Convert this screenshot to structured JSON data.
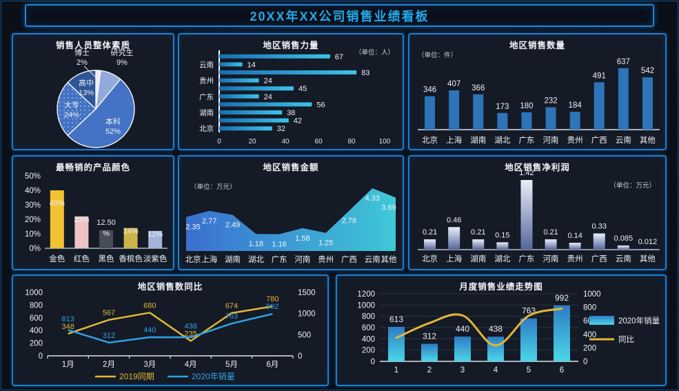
{
  "page": {
    "title": "20XX年XX公司销售业绩看板",
    "colors": {
      "background": "#0b0f17",
      "panel_background": "#141a26",
      "panel_border": "#1b7fd4",
      "title_text": "#23a9ea",
      "text": "#eef2f5",
      "yellow_series": "#e3b838",
      "blue_series": "#2fa3e6"
    }
  },
  "chart_data": [
    {
      "id": "staff-quality",
      "renderer": "pie",
      "type": "pie",
      "title": "销售人员整体素质",
      "labels": [
        "博士",
        "研究生",
        "本科",
        "大专",
        "高中"
      ],
      "values": [
        2,
        9,
        52,
        24,
        13
      ],
      "value_labels": [
        "2%",
        "9%",
        "52%",
        "24%",
        "13%"
      ],
      "colors": [
        "#e8eef8",
        "#93a9dc",
        "#4472c4",
        "#4472c4",
        "#2e5597"
      ],
      "pattern_slice": 3,
      "legend_position": "none"
    },
    {
      "id": "regional-sales-force",
      "renderer": "hbar",
      "type": "bar",
      "orientation": "horizontal",
      "title": "地区销售力量",
      "unit": "（单位：人）",
      "categories": [
        "",
        "云南",
        "",
        "贵州",
        "",
        "广东",
        "",
        "湖南",
        "",
        "北京"
      ],
      "values": [
        67,
        14,
        83,
        24,
        45,
        24,
        56,
        38,
        42,
        32
      ],
      "xlim": [
        0,
        100
      ],
      "xticks": [
        0,
        20,
        40,
        60,
        80,
        100
      ],
      "bar_gradient": [
        "#1b6db0",
        "#3cc3e8"
      ],
      "grid": false
    },
    {
      "id": "regional-sales-quantity",
      "renderer": "vbar",
      "type": "bar",
      "title": "地区销售数量",
      "unit": "（单位：件）",
      "categories": [
        "北京",
        "上海",
        "湖南",
        "湖北",
        "广东",
        "河南",
        "贵州",
        "广西",
        "云南",
        "其他"
      ],
      "values": [
        346,
        407,
        366,
        173,
        180,
        232,
        184,
        491,
        637,
        542
      ],
      "ylim": [
        0,
        700
      ],
      "bar_color": "#2d74b8",
      "grid": false
    },
    {
      "id": "best-selling-colors",
      "renderer": "pctbar",
      "type": "bar",
      "variant": "percent",
      "title": "最畅销的产品颜色",
      "categories": [
        "金色",
        "红色",
        "黑色",
        "香槟色",
        "淡紫色"
      ],
      "values": [
        40,
        22,
        12.5,
        14,
        12
      ],
      "value_labels": [
        "40%",
        "22%",
        "12.50%",
        "14%",
        "12%"
      ],
      "bar_colors": [
        "#f1c232",
        "#eec3c3",
        "#474d59",
        "#cdb44a",
        "#a6b3d9"
      ],
      "yticks": [
        "0%",
        "10%",
        "20%",
        "30%",
        "40%",
        "50%"
      ],
      "ylim": [
        0,
        50
      ],
      "grid": false
    },
    {
      "id": "regional-sales-amount",
      "renderer": "area",
      "type": "area",
      "title": "地区销售金额",
      "unit": "（单位：万元）",
      "categories": [
        "北京",
        "上海",
        "湖南",
        "湖北",
        "广东",
        "河南",
        "贵州",
        "广西",
        "云南",
        "其他"
      ],
      "values": [
        2.35,
        2.77,
        2.49,
        1.18,
        1.16,
        1.58,
        1.25,
        2.78,
        4.33,
        3.69
      ],
      "ylim": [
        0,
        4.33
      ],
      "area_gradient": [
        "#3a6fd0",
        "#3fc8d8"
      ],
      "grid": false
    },
    {
      "id": "regional-net-profit",
      "renderer": "gradbar",
      "type": "bar",
      "title": "地区销售净利润",
      "unit": "（单位：万元）",
      "categories": [
        "北京",
        "上海",
        "湖南",
        "湖北",
        "广东",
        "河南",
        "贵州",
        "广西",
        "云南",
        "其他"
      ],
      "values": [
        0.21,
        0.46,
        0.21,
        0.15,
        1.42,
        0.21,
        0.14,
        0.33,
        0.085,
        0.012
      ],
      "ylim": [
        0,
        1.42
      ],
      "bar_gradient": [
        "#e9eef9",
        "#54679b"
      ],
      "grid": false
    },
    {
      "id": "regional-sales-yoy",
      "renderer": "dualline",
      "type": "line",
      "title": "地区销售数同比",
      "categories": [
        "1月",
        "2月",
        "3月",
        "4月",
        "5月",
        "6月"
      ],
      "series": [
        {
          "name": "2019同期",
          "color": "#e3b838",
          "axis": "left",
          "values": [
            348,
            567,
            680,
            235,
            674,
            780
          ]
        },
        {
          "name": "2020年销量",
          "color": "#2fa3e6",
          "axis": "right",
          "values": [
            613,
            312,
            440,
            438,
            763,
            992
          ]
        }
      ],
      "left_ticks": [
        0,
        200,
        400,
        600,
        800,
        1000
      ],
      "right_ticks": [
        0,
        500,
        1000,
        1500
      ],
      "left_lim": [
        0,
        1000
      ],
      "right_lim": [
        0,
        1500
      ],
      "legend_position": "bottom",
      "grid": false
    },
    {
      "id": "monthly-performance-trend",
      "renderer": "combo",
      "type": "combo",
      "title": "月度销售业绩走势图",
      "categories": [
        "1",
        "2",
        "3",
        "4",
        "5",
        "6"
      ],
      "series": [
        {
          "name": "2020年销量",
          "type": "bar",
          "axis": "left",
          "gradient": [
            "#2e7cc3",
            "#4cd6e9"
          ],
          "values": [
            613,
            312,
            440,
            438,
            763,
            992
          ]
        },
        {
          "name": "同比",
          "type": "line",
          "axis": "right",
          "color": "#e3b838",
          "values": [
            348,
            567,
            680,
            235,
            674,
            780
          ]
        }
      ],
      "left_ticks": [
        0,
        200,
        400,
        600,
        800,
        1000,
        1200
      ],
      "right_ticks": [
        0,
        200,
        400,
        600,
        800,
        1000
      ],
      "left_lim": [
        0,
        1200
      ],
      "right_lim": [
        0,
        1000
      ],
      "legend_position": "right",
      "grid": true
    }
  ]
}
